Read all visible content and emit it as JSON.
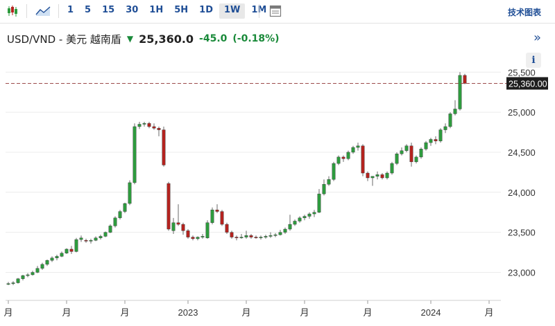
{
  "toolbar": {
    "intervals": [
      "1",
      "5",
      "15",
      "30",
      "1H",
      "5H",
      "1D",
      "1W",
      "1M"
    ],
    "active_interval": "1W",
    "tech_chart_label": "技术图表",
    "icons": [
      "candlestick-icon",
      "area-chart-icon",
      "document-icon"
    ]
  },
  "quote": {
    "pair": "USD/VND - 美元 越南盾",
    "price": "25,360.0",
    "change": "-45.0",
    "change_pct": "(-0.18%)",
    "direction_icon": "down-arrow-icon",
    "expand_label": "»",
    "info_label": "i"
  },
  "colors": {
    "up": "#2e9b3e",
    "down": "#b4231f",
    "text_up": "#1a8a3a",
    "link": "#1f4e96"
  },
  "chart_data": {
    "type": "candlestick",
    "interval": "1W",
    "ylim": [
      22650,
      25580
    ],
    "y_ticks": [
      23000,
      23500,
      24000,
      24500,
      25000,
      25500
    ],
    "y_tick_labels": [
      "23,000",
      "23,500",
      "24,000",
      "24,500",
      "25,000",
      "25,500"
    ],
    "x_tick_labels": [
      "月",
      "月",
      "月",
      "2023",
      "月",
      "月",
      "月",
      "2024",
      "月"
    ],
    "x_tick_weeks": [
      0,
      12,
      24,
      37,
      49,
      61,
      74,
      87,
      99
    ],
    "last_price": 25360.0,
    "last_price_label": "25,360.00",
    "grid": "horizontal",
    "candles": [
      [
        22860,
        22880,
        22840,
        22860
      ],
      [
        22860,
        22890,
        22840,
        22870
      ],
      [
        22870,
        22930,
        22860,
        22920
      ],
      [
        22920,
        22970,
        22900,
        22960
      ],
      [
        22960,
        22990,
        22940,
        22970
      ],
      [
        22970,
        23020,
        22960,
        23000
      ],
      [
        23000,
        23080,
        22990,
        23050
      ],
      [
        23050,
        23120,
        23030,
        23100
      ],
      [
        23100,
        23160,
        23080,
        23150
      ],
      [
        23150,
        23200,
        23130,
        23180
      ],
      [
        23180,
        23220,
        23150,
        23200
      ],
      [
        23200,
        23260,
        23190,
        23240
      ],
      [
        23240,
        23300,
        23230,
        23290
      ],
      [
        23290,
        23330,
        23230,
        23260
      ],
      [
        23260,
        23430,
        23250,
        23410
      ],
      [
        23410,
        23460,
        23380,
        23430
      ],
      [
        23400,
        23420,
        23370,
        23390
      ],
      [
        23390,
        23420,
        23360,
        23400
      ],
      [
        23400,
        23450,
        23390,
        23430
      ],
      [
        23430,
        23470,
        23410,
        23450
      ],
      [
        23450,
        23510,
        23440,
        23500
      ],
      [
        23500,
        23600,
        23490,
        23580
      ],
      [
        23580,
        23700,
        23560,
        23680
      ],
      [
        23680,
        23780,
        23660,
        23760
      ],
      [
        23760,
        23870,
        23740,
        23860
      ],
      [
        23860,
        24150,
        23840,
        24120
      ],
      [
        24120,
        24860,
        24100,
        24820
      ],
      [
        24820,
        24880,
        24790,
        24850
      ],
      [
        24850,
        24880,
        24820,
        24860
      ],
      [
        24860,
        24880,
        24800,
        24820
      ],
      [
        24820,
        24860,
        24780,
        24800
      ],
      [
        24800,
        24820,
        24700,
        24780
      ],
      [
        24780,
        24820,
        24320,
        24340
      ],
      [
        24110,
        24130,
        23520,
        23540
      ],
      [
        23520,
        23680,
        23480,
        23620
      ],
      [
        23620,
        23850,
        23580,
        23600
      ],
      [
        23600,
        23620,
        23470,
        23520
      ],
      [
        23520,
        23540,
        23420,
        23440
      ],
      [
        23440,
        23460,
        23400,
        23420
      ],
      [
        23420,
        23450,
        23400,
        23440
      ],
      [
        23440,
        23480,
        23420,
        23450
      ],
      [
        23430,
        23650,
        23420,
        23620
      ],
      [
        23620,
        23810,
        23600,
        23780
      ],
      [
        23780,
        23850,
        23740,
        23760
      ],
      [
        23760,
        23780,
        23580,
        23600
      ],
      [
        23600,
        23620,
        23480,
        23500
      ],
      [
        23500,
        23520,
        23420,
        23440
      ],
      [
        23440,
        23460,
        23400,
        23430
      ],
      [
        23430,
        23480,
        23420,
        23440
      ],
      [
        23440,
        23520,
        23420,
        23460
      ],
      [
        23460,
        23480,
        23420,
        23440
      ],
      [
        23440,
        23460,
        23420,
        23430
      ],
      [
        23430,
        23460,
        23410,
        23440
      ],
      [
        23440,
        23470,
        23420,
        23450
      ],
      [
        23450,
        23500,
        23430,
        23460
      ],
      [
        23460,
        23490,
        23440,
        23470
      ],
      [
        23470,
        23530,
        23460,
        23500
      ],
      [
        23500,
        23560,
        23480,
        23540
      ],
      [
        23540,
        23720,
        23520,
        23600
      ],
      [
        23600,
        23660,
        23580,
        23640
      ],
      [
        23640,
        23700,
        23620,
        23680
      ],
      [
        23680,
        23720,
        23650,
        23700
      ],
      [
        23700,
        23750,
        23670,
        23730
      ],
      [
        23730,
        23780,
        23690,
        23750
      ],
      [
        23750,
        24040,
        23740,
        23980
      ],
      [
        23980,
        24160,
        23960,
        24100
      ],
      [
        24100,
        24200,
        24080,
        24160
      ],
      [
        24160,
        24380,
        24140,
        24360
      ],
      [
        24360,
        24460,
        24340,
        24440
      ],
      [
        24440,
        24460,
        24380,
        24420
      ],
      [
        24420,
        24520,
        24400,
        24500
      ],
      [
        24500,
        24580,
        24480,
        24560
      ],
      [
        24560,
        24620,
        24520,
        24580
      ],
      [
        24580,
        24600,
        24200,
        24240
      ],
      [
        24240,
        24260,
        24140,
        24180
      ],
      [
        24180,
        24200,
        24080,
        24200
      ],
      [
        24200,
        24260,
        24160,
        24220
      ],
      [
        24220,
        24240,
        24160,
        24180
      ],
      [
        24180,
        24260,
        24160,
        24240
      ],
      [
        24240,
        24380,
        24220,
        24360
      ],
      [
        24360,
        24500,
        24340,
        24480
      ],
      [
        24480,
        24560,
        24460,
        24520
      ],
      [
        24520,
        24600,
        24500,
        24580
      ],
      [
        24580,
        24620,
        24320,
        24380
      ],
      [
        24380,
        24460,
        24360,
        24440
      ],
      [
        24440,
        24560,
        24420,
        24540
      ],
      [
        24540,
        24640,
        24520,
        24620
      ],
      [
        24620,
        24680,
        24580,
        24660
      ],
      [
        24660,
        24700,
        24600,
        24640
      ],
      [
        24640,
        24800,
        24620,
        24780
      ],
      [
        24780,
        24860,
        24740,
        24820
      ],
      [
        24820,
        25000,
        24800,
        24980
      ],
      [
        24980,
        25150,
        24960,
        25040
      ],
      [
        25040,
        25500,
        25020,
        25460
      ],
      [
        25460,
        25480,
        25350,
        25360
      ]
    ]
  }
}
